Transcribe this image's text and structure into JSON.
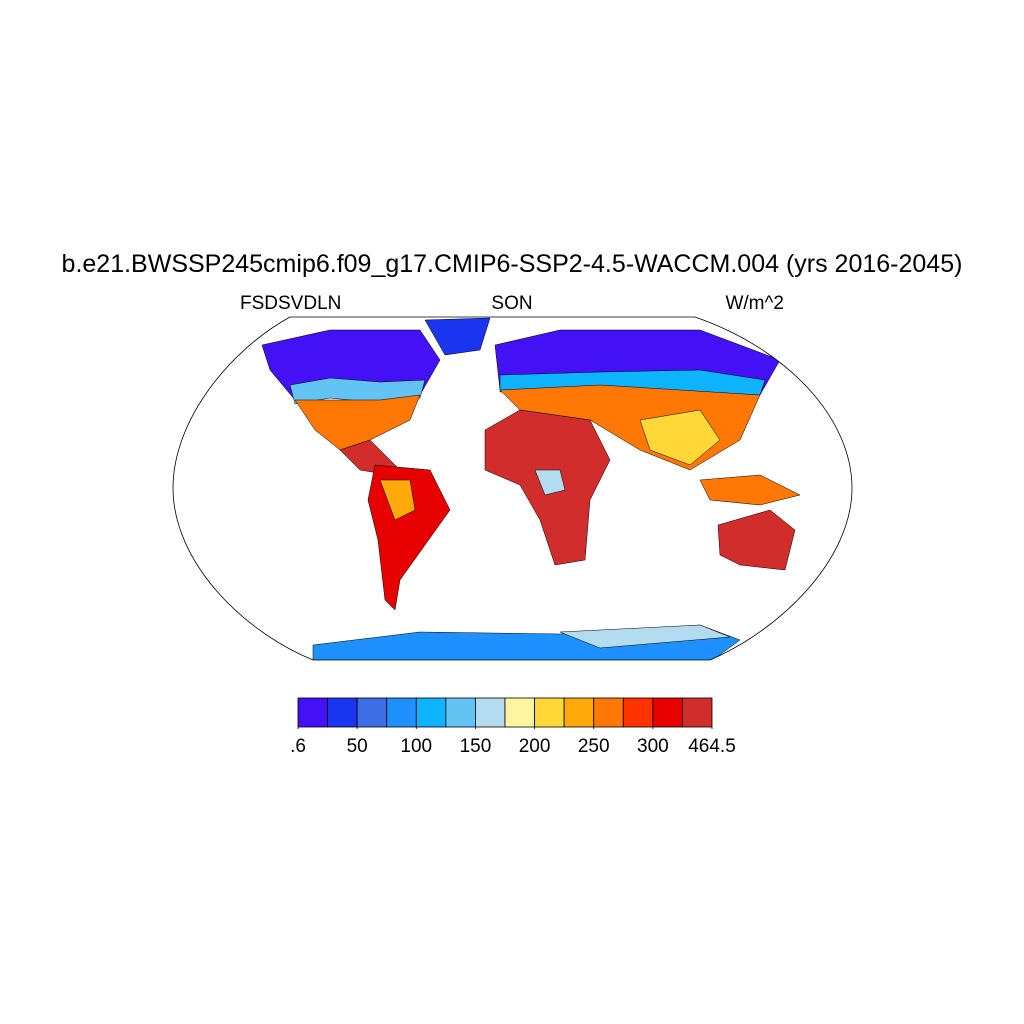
{
  "title": "b.e21.BWSSP245cmip6.f09_g17.CMIP6-SSP2-4.5-WACCM.004 (yrs 2016-2045)",
  "left_subtitle": "FSDSVDLN",
  "center_subtitle": "SON",
  "right_subtitle": "W/m^2",
  "colorbar": {
    "colors": [
      "#4410f5",
      "#1a35f0",
      "#3d6ee6",
      "#1e90ff",
      "#0fb4ff",
      "#64c3f5",
      "#b4dcf0",
      "#fff5a0",
      "#ffd737",
      "#ffaa0a",
      "#ff7805",
      "#ff3200",
      "#e60000",
      "#d22d2d"
    ],
    "ticks": [
      {
        "value": 0.6,
        "label": ".6"
      },
      50,
      100,
      150,
      200,
      250,
      300,
      464.5
    ]
  }
}
